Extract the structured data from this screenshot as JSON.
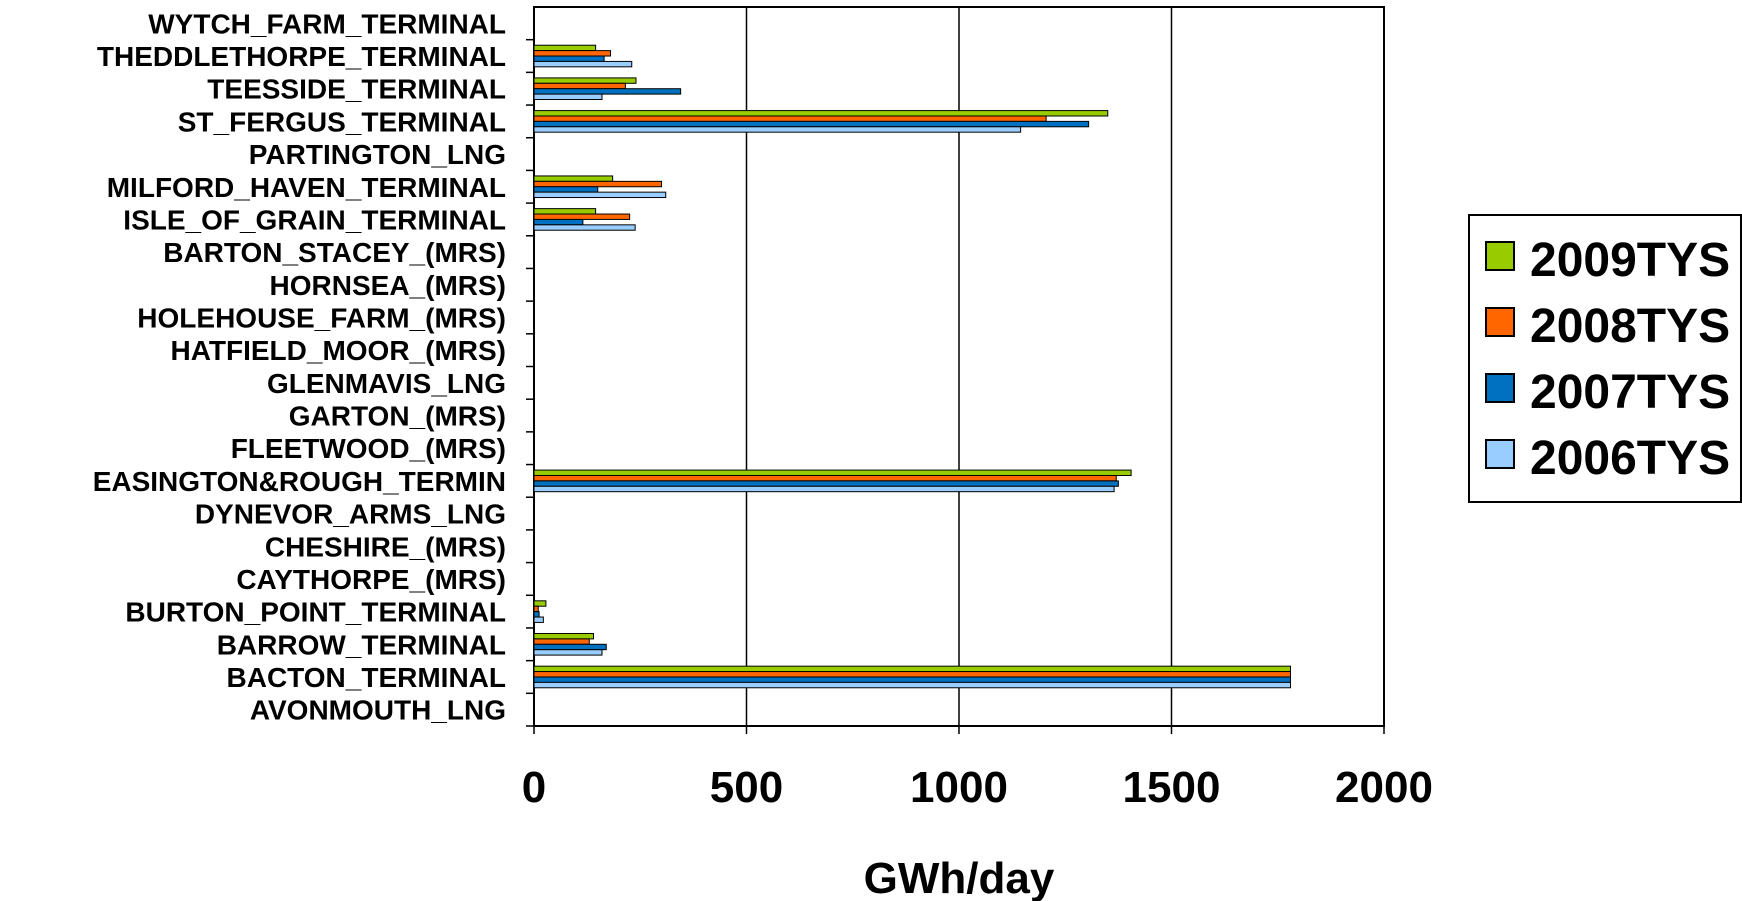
{
  "chart_data": {
    "type": "bar",
    "orientation": "horizontal",
    "xlabel": "GWh/day",
    "ylabel": "",
    "xlim": [
      0,
      2000
    ],
    "xticks": [
      "0",
      "500",
      "1000",
      "1500",
      "2000"
    ],
    "grid": "vertical major gridlines",
    "legend_position": "right",
    "categories": [
      "WYTCH_FARM_TERMINAL",
      "THEDDLETHORPE_TERMINAL",
      "TEESSIDE_TERMINAL",
      "ST_FERGUS_TERMINAL",
      "PARTINGTON_LNG",
      "MILFORD_HAVEN_TERMINAL",
      "ISLE_OF_GRAIN_TERMINAL",
      "BARTON_STACEY_(MRS)",
      "HORNSEA_(MRS)",
      "HOLEHOUSE_FARM_(MRS)",
      "HATFIELD_MOOR_(MRS)",
      "GLENMAVIS_LNG",
      "GARTON_(MRS)",
      "FLEETWOOD_(MRS)",
      "EASINGTON&ROUGH_TERMIN",
      "DYNEVOR_ARMS_LNG",
      "CHESHIRE_(MRS)",
      "CAYTHORPE_(MRS)",
      "BURTON_POINT_TERMINAL",
      "BARROW_TERMINAL",
      "BACTON_TERMINAL",
      "AVONMOUTH_LNG"
    ],
    "series": [
      {
        "name": "2009TYS",
        "color": "#99cc00",
        "values": [
          0,
          145,
          240,
          1350,
          0,
          185,
          145,
          0,
          0,
          0,
          0,
          0,
          0,
          0,
          1405,
          0,
          0,
          0,
          28,
          140,
          1780,
          0
        ]
      },
      {
        "name": "2008TYS",
        "color": "#ff6600",
        "values": [
          0,
          180,
          215,
          1205,
          0,
          300,
          225,
          0,
          0,
          0,
          0,
          0,
          0,
          0,
          1370,
          0,
          0,
          0,
          10,
          130,
          1780,
          0
        ]
      },
      {
        "name": "2007TYS",
        "color": "#0070c0",
        "values": [
          0,
          165,
          345,
          1305,
          0,
          150,
          115,
          0,
          0,
          0,
          0,
          0,
          0,
          0,
          1375,
          0,
          0,
          0,
          12,
          170,
          1780,
          0
        ]
      },
      {
        "name": "2006TYS",
        "color": "#99ccff",
        "values": [
          0,
          230,
          160,
          1145,
          0,
          310,
          238,
          0,
          0,
          0,
          0,
          0,
          0,
          0,
          1365,
          0,
          0,
          0,
          22,
          160,
          1780,
          0
        ]
      }
    ]
  }
}
